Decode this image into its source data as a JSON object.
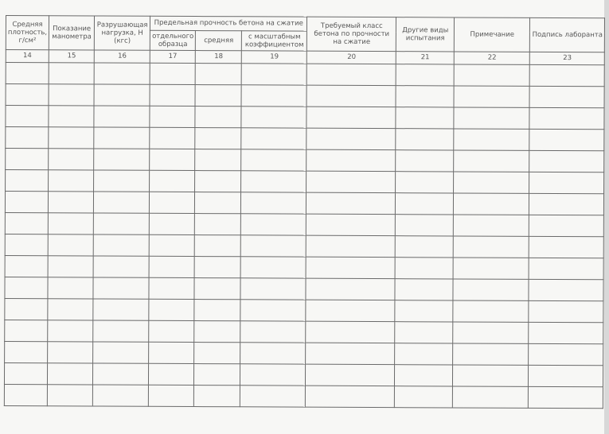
{
  "header": {
    "columns": [
      {
        "label": "Средняя плотность, г/см²",
        "number": "14"
      },
      {
        "label": "Показание манометра",
        "number": "15"
      },
      {
        "label": "Разрушающая нагрузка, Н (кгс)",
        "number": "16"
      },
      {
        "label": "отдельного образца",
        "number": "17"
      },
      {
        "label": "средняя",
        "number": "18"
      },
      {
        "label": "с масштабным коэффициентом",
        "number": "19"
      },
      {
        "label": "Требуемый класс бетона по прочности на сжатие",
        "number": "20"
      },
      {
        "label": "Другие виды испытания",
        "number": "21"
      },
      {
        "label": "Примечание",
        "number": "22"
      },
      {
        "label": "Подпись лаборанта",
        "number": "23"
      }
    ],
    "group_label": "Предельная прочность бетона на сжатие"
  }
}
